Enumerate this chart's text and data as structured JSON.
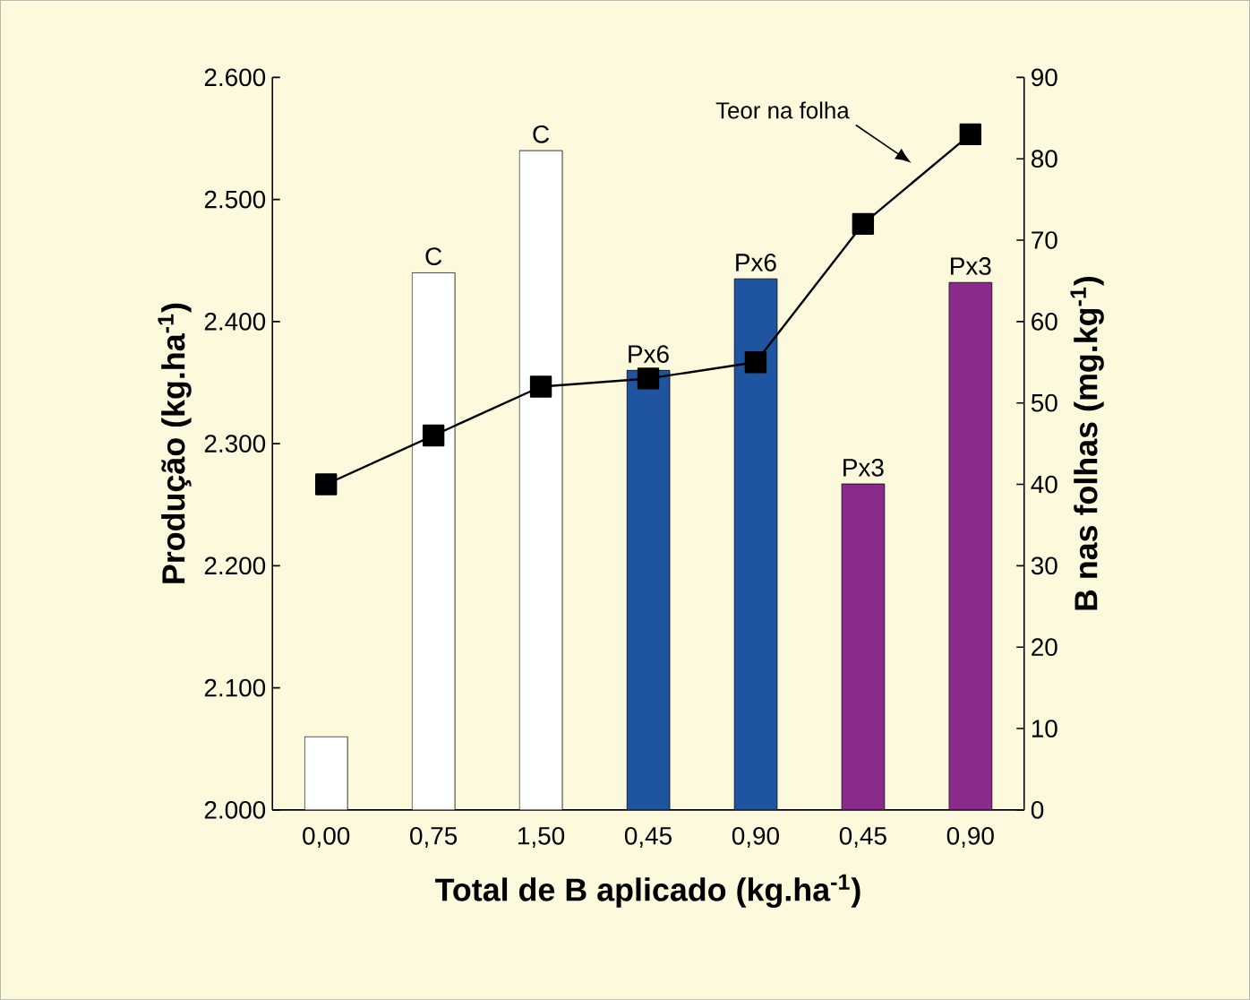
{
  "chart_data": {
    "type": "bar",
    "xlabel": "Total de B aplicado (kg.ha$^{-1}$)",
    "ylabel": "Produção (kg.ha$^{-1}$)",
    "y2label": "B nas folhas (mg.kg$^{-1}$)",
    "categories": [
      "0,00",
      "0,75",
      "1,50",
      "0,45",
      "0,90",
      "0,45",
      "0,90"
    ],
    "series": [
      {
        "colors": [
          "#ffffff",
          "#ffffff",
          "#ffffff",
          "#1f55a0",
          "#1f55a0",
          "#8a2a8a",
          "#8a2a8a"
        ],
        "values": [
          2060,
          2440,
          2540,
          2360,
          2435,
          2267,
          2432
        ],
        "value_labels": [
          null,
          "C",
          "C",
          "Px6",
          "Px6",
          "Px3",
          "Px3"
        ]
      },
      {
        "type": "line",
        "axis": "y2",
        "name": "Teor na folha",
        "color": "#000000",
        "marker": "square",
        "values": [
          40,
          46,
          52,
          53,
          55,
          72,
          83
        ]
      }
    ],
    "ylim": [
      2000,
      2600
    ],
    "yticks": [
      {
        "value": 2000,
        "label": "2.000"
      },
      {
        "value": 2100,
        "label": "2.100"
      },
      {
        "value": 2200,
        "label": "2.200"
      },
      {
        "value": 2300,
        "label": "2.300"
      },
      {
        "value": 2400,
        "label": "2.400"
      },
      {
        "value": 2500,
        "label": "2.500"
      },
      {
        "value": 2600,
        "label": "2.600"
      }
    ],
    "y2lim": [
      0,
      90
    ],
    "y2ticks": [
      0,
      10,
      20,
      30,
      40,
      50,
      60,
      70,
      80,
      90
    ],
    "grid": false
  }
}
